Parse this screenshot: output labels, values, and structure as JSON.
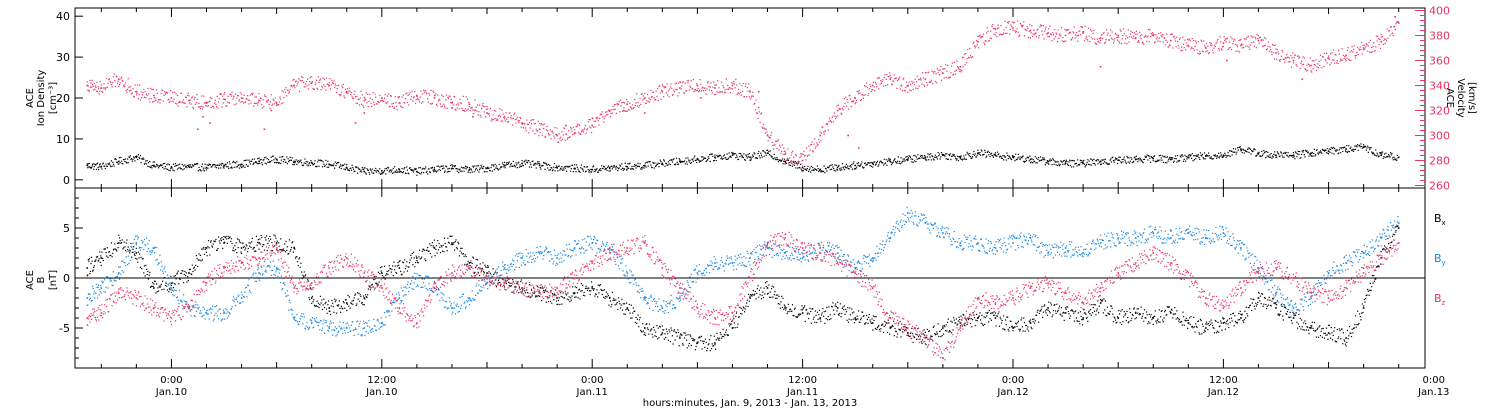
{
  "chart_data": [
    {
      "type": "scatter",
      "panel": "plasma",
      "ylabel_left": [
        "ACE",
        "Ion Density",
        "[cm⁻³]"
      ],
      "ylabel_right": [
        "ACE",
        "Velocity",
        "[km/s]"
      ],
      "ylim_left": [
        -2,
        42
      ],
      "ylim_right": [
        258,
        402
      ],
      "yticks_left": [
        0,
        10,
        20,
        30,
        40
      ],
      "yticks_right": [
        260,
        280,
        300,
        320,
        340,
        360,
        380,
        400
      ],
      "grid": false,
      "series": [
        {
          "name": "Ion Density",
          "axis": "left",
          "color": "#000000",
          "x": [
            -4.8,
            -4.0,
            -3.0,
            -2.0,
            -1.0,
            0.0,
            1.0,
            2.0,
            3.0,
            4.0,
            5.0,
            6.0,
            7.0,
            8.0,
            9.0,
            10.0,
            11.0,
            12.0,
            13.0,
            14.0,
            15.0,
            16.0,
            17.0,
            18.0,
            19.0,
            20.0,
            21.0,
            22.0,
            23.0,
            24.0,
            25.0,
            26.0,
            27.0,
            28.0,
            29.0,
            30.0,
            31.0,
            32.0,
            33.0,
            34.0,
            35.0,
            36.0,
            37.0,
            38.0,
            39.0,
            40.0,
            41.0,
            42.0,
            43.0,
            44.0,
            45.0,
            46.0,
            47.0,
            48.0,
            49.0,
            50.0,
            51.0,
            52.0,
            53.0,
            54.0,
            55.0,
            56.0,
            57.0,
            58.0,
            59.0,
            60.0,
            61.0,
            62.0,
            63.0,
            64.0,
            65.0,
            66.0,
            67.0,
            68.0,
            69.0,
            70.0
          ],
          "values": [
            3.5,
            3.2,
            4.5,
            5.5,
            3.5,
            3.0,
            3.2,
            3.0,
            3.5,
            3.8,
            4.5,
            5.0,
            4.5,
            4.2,
            3.8,
            3.0,
            2.0,
            2.2,
            2.5,
            2.0,
            2.5,
            2.8,
            2.5,
            2.8,
            3.5,
            4.0,
            3.5,
            3.0,
            2.8,
            2.5,
            2.8,
            3.2,
            3.5,
            4.0,
            4.5,
            5.0,
            5.5,
            6.0,
            5.5,
            6.5,
            4.5,
            3.0,
            2.5,
            3.0,
            3.5,
            4.0,
            4.5,
            5.0,
            5.5,
            6.0,
            5.5,
            6.5,
            6.0,
            5.5,
            5.0,
            4.5,
            4.0,
            4.0,
            4.5,
            4.8,
            5.0,
            5.2,
            5.0,
            5.5,
            5.8,
            6.0,
            7.5,
            6.5,
            6.0,
            6.0,
            6.5,
            7.0,
            7.5,
            8.0,
            6.0,
            5.5
          ]
        },
        {
          "name": "Velocity",
          "axis": "right",
          "color": "#e8345f",
          "x": [
            -4.8,
            -4.0,
            -3.0,
            -2.0,
            -1.0,
            0.0,
            1.0,
            2.0,
            3.0,
            4.0,
            5.0,
            6.0,
            7.0,
            8.0,
            9.0,
            10.0,
            11.0,
            12.0,
            13.0,
            14.0,
            15.0,
            16.0,
            17.0,
            18.0,
            19.0,
            20.0,
            21.0,
            22.0,
            23.0,
            24.0,
            25.0,
            26.0,
            27.0,
            28.0,
            29.0,
            30.0,
            31.0,
            32.0,
            33.0,
            34.0,
            35.0,
            36.0,
            37.0,
            38.0,
            39.0,
            40.0,
            41.0,
            42.0,
            43.0,
            44.0,
            45.0,
            46.0,
            47.0,
            48.0,
            49.0,
            50.0,
            51.0,
            52.0,
            53.0,
            54.0,
            55.0,
            56.0,
            57.0,
            58.0,
            59.0,
            60.0,
            61.0,
            62.0,
            63.0,
            64.0,
            65.0,
            66.0,
            67.0,
            68.0,
            69.0,
            70.0
          ],
          "values": [
            340,
            338,
            345,
            335,
            332,
            330,
            328,
            326,
            329,
            330,
            328,
            326,
            340,
            342,
            340,
            335,
            328,
            330,
            326,
            332,
            330,
            326,
            325,
            318,
            315,
            310,
            305,
            300,
            302,
            308,
            320,
            325,
            330,
            335,
            338,
            340,
            338,
            340,
            335,
            300,
            285,
            280,
            300,
            320,
            330,
            340,
            345,
            340,
            345,
            350,
            355,
            375,
            385,
            386,
            384,
            382,
            380,
            382,
            378,
            380,
            378,
            380,
            376,
            372,
            370,
            374,
            372,
            376,
            366,
            360,
            356,
            362,
            364,
            370,
            375,
            390
          ]
        },
        {
          "name": "Velocity (sparse points)",
          "axis": "right",
          "color": "#e8345f",
          "x": [
            1.5,
            1.8,
            2.2,
            5.3,
            5.7,
            10.5,
            11.0,
            16.0,
            17.2,
            22.5,
            25.8,
            27.0,
            30.2,
            33.5,
            38.6,
            39.2,
            53.0,
            60.2,
            64.5,
            69.8
          ],
          "values": [
            305,
            315,
            310,
            305,
            320,
            310,
            318,
            322,
            315,
            308,
            320,
            318,
            330,
            335,
            300,
            290,
            355,
            360,
            345,
            395
          ]
        }
      ]
    },
    {
      "type": "scatter",
      "panel": "magnetic-field",
      "ylabel_left": [
        "ACE",
        "B",
        "[nT]"
      ],
      "ylim": [
        -9,
        9
      ],
      "yticks": [
        -5,
        0,
        5
      ],
      "zero_line": true,
      "grid": false,
      "legend": "right",
      "series": [
        {
          "name": "Bx",
          "color": "#000000",
          "x": [
            -4.8,
            -4.0,
            -3.0,
            -2.0,
            -1.0,
            0.0,
            1.0,
            2.0,
            3.0,
            4.0,
            5.0,
            6.0,
            7.0,
            8.0,
            9.0,
            10.0,
            11.0,
            12.0,
            13.0,
            14.0,
            15.0,
            16.0,
            17.0,
            18.0,
            19.0,
            20.0,
            21.0,
            22.0,
            23.0,
            24.0,
            25.0,
            26.0,
            27.0,
            28.0,
            29.0,
            30.0,
            31.0,
            32.0,
            33.0,
            34.0,
            35.0,
            36.0,
            37.0,
            38.0,
            39.0,
            40.0,
            41.0,
            42.0,
            43.0,
            44.0,
            45.0,
            46.0,
            47.0,
            48.0,
            49.0,
            50.0,
            51.0,
            52.0,
            53.0,
            54.0,
            55.0,
            56.0,
            57.0,
            58.0,
            59.0,
            60.0,
            61.0,
            62.0,
            63.0,
            64.0,
            65.0,
            66.0,
            67.0,
            68.0,
            69.0,
            70.0
          ],
          "values": [
            1.0,
            2.0,
            3.5,
            2.5,
            -1.0,
            -0.5,
            0.5,
            3.0,
            3.5,
            3.0,
            3.5,
            3.5,
            3.0,
            -2.0,
            -3.0,
            -2.5,
            -2.0,
            0.5,
            1.0,
            2.0,
            3.0,
            3.5,
            1.5,
            0.5,
            -0.5,
            -1.0,
            -1.5,
            -2.0,
            -1.5,
            -1.0,
            -2.0,
            -3.0,
            -5.0,
            -5.5,
            -6.0,
            -6.5,
            -6.5,
            -5.0,
            -2.0,
            -1.0,
            -3.0,
            -3.5,
            -4.0,
            -3.0,
            -4.0,
            -4.5,
            -5.0,
            -5.5,
            -6.0,
            -5.0,
            -4.5,
            -4.0,
            -4.0,
            -5.0,
            -4.5,
            -3.0,
            -3.5,
            -4.0,
            -2.5,
            -4.0,
            -3.5,
            -4.0,
            -3.5,
            -4.5,
            -5.0,
            -4.5,
            -4.0,
            -2.0,
            -3.0,
            -4.0,
            -5.0,
            -5.5,
            -6.0,
            -3.0,
            2.0,
            5.0
          ]
        },
        {
          "name": "By",
          "color": "#1a86e0",
          "x": [
            -4.8,
            -4.0,
            -3.0,
            -2.0,
            -1.0,
            0.0,
            1.0,
            2.0,
            3.0,
            4.0,
            5.0,
            6.0,
            7.0,
            8.0,
            9.0,
            10.0,
            11.0,
            12.0,
            13.0,
            14.0,
            15.0,
            16.0,
            17.0,
            18.0,
            19.0,
            20.0,
            21.0,
            22.0,
            23.0,
            24.0,
            25.0,
            26.0,
            27.0,
            28.0,
            29.0,
            30.0,
            31.0,
            32.0,
            33.0,
            34.0,
            35.0,
            36.0,
            37.0,
            38.0,
            39.0,
            40.0,
            41.0,
            42.0,
            43.0,
            44.0,
            45.0,
            46.0,
            47.0,
            48.0,
            49.0,
            50.0,
            51.0,
            52.0,
            53.0,
            54.0,
            55.0,
            56.0,
            57.0,
            58.0,
            59.0,
            60.0,
            61.0,
            62.0,
            63.0,
            64.0,
            65.0,
            66.0,
            67.0,
            68.0,
            69.0,
            70.0
          ],
          "values": [
            -2.0,
            -1.0,
            0.5,
            3.5,
            3.0,
            -1.0,
            -3.0,
            -3.5,
            -3.5,
            -2.0,
            0.5,
            1.0,
            -4.0,
            -4.5,
            -5.0,
            -5.0,
            -5.0,
            -4.5,
            -2.0,
            0.0,
            -1.0,
            -3.0,
            -2.0,
            -0.5,
            1.0,
            2.0,
            2.5,
            2.0,
            3.0,
            3.5,
            3.0,
            0.5,
            -2.0,
            -3.0,
            -2.0,
            0.5,
            1.5,
            1.5,
            2.0,
            3.0,
            2.5,
            2.0,
            3.0,
            2.5,
            1.0,
            2.0,
            4.0,
            6.5,
            5.5,
            4.5,
            3.5,
            3.5,
            3.0,
            3.5,
            4.0,
            2.5,
            3.0,
            2.5,
            3.5,
            4.0,
            4.0,
            4.5,
            4.0,
            4.5,
            4.0,
            4.5,
            3.0,
            1.0,
            -1.5,
            -3.0,
            -2.0,
            0.5,
            1.5,
            2.5,
            4.0,
            5.5
          ]
        },
        {
          "name": "Bz",
          "color": "#e8345f",
          "x": [
            -4.8,
            -4.0,
            -3.0,
            -2.0,
            -1.0,
            0.0,
            1.0,
            2.0,
            3.0,
            4.0,
            5.0,
            6.0,
            7.0,
            8.0,
            9.0,
            10.0,
            11.0,
            12.0,
            13.0,
            14.0,
            15.0,
            16.0,
            17.0,
            18.0,
            19.0,
            20.0,
            21.0,
            22.0,
            23.0,
            24.0,
            25.0,
            26.0,
            27.0,
            28.0,
            29.0,
            30.0,
            31.0,
            32.0,
            33.0,
            34.0,
            35.0,
            36.0,
            37.0,
            38.0,
            39.0,
            40.0,
            41.0,
            42.0,
            43.0,
            44.0,
            45.0,
            46.0,
            47.0,
            48.0,
            49.0,
            50.0,
            51.0,
            52.0,
            53.0,
            54.0,
            55.0,
            56.0,
            57.0,
            58.0,
            59.0,
            60.0,
            61.0,
            62.0,
            63.0,
            64.0,
            65.0,
            66.0,
            67.0,
            68.0,
            69.0,
            70.0
          ],
          "values": [
            -4.0,
            -3.5,
            -1.5,
            -2.0,
            -3.0,
            -4.0,
            -3.0,
            -0.5,
            1.0,
            1.5,
            2.0,
            3.0,
            -1.0,
            -0.5,
            1.0,
            2.0,
            0.5,
            -1.0,
            -3.0,
            -4.5,
            -1.0,
            0.5,
            1.0,
            0.0,
            -0.5,
            -1.0,
            -1.5,
            -1.0,
            0.0,
            1.5,
            2.5,
            3.0,
            3.5,
            1.0,
            -1.0,
            -3.0,
            -4.0,
            -3.5,
            0.0,
            3.5,
            4.0,
            3.0,
            2.5,
            1.5,
            0.5,
            -1.0,
            -4.0,
            -5.0,
            -6.0,
            -8.0,
            -5.0,
            -2.0,
            -2.5,
            -2.0,
            -1.0,
            -0.5,
            -1.5,
            -2.5,
            -1.0,
            0.5,
            1.5,
            2.5,
            1.5,
            0.0,
            -2.0,
            -3.0,
            -1.0,
            0.5,
            1.0,
            0.0,
            -1.5,
            -2.0,
            -1.0,
            0.5,
            2.0,
            3.5
          ]
        }
      ]
    }
  ],
  "x_axis": {
    "xlim_hours": [
      -5.5,
      71.5
    ],
    "major_ticks": [
      0,
      12,
      24,
      36,
      48,
      60,
      72
    ],
    "tick_time_labels": [
      "0:00",
      "12:00",
      "0:00",
      "12:00",
      "0:00",
      "12:00",
      "0:00"
    ],
    "tick_date_labels": [
      "Jan.10",
      "Jan.10",
      "Jan.11",
      "Jan.11",
      "Jan.12",
      "Jan.12",
      "Jan.13"
    ],
    "title": "hours:minutes, Jan.  9, 2013 - Jan. 13, 2013"
  },
  "legend": {
    "bx": {
      "main": "B",
      "sub": "x",
      "color": "#000000"
    },
    "by": {
      "main": "B",
      "sub": "y",
      "color": "#1a86e0"
    },
    "bz": {
      "main": "B",
      "sub": "z",
      "color": "#e8345f"
    }
  }
}
